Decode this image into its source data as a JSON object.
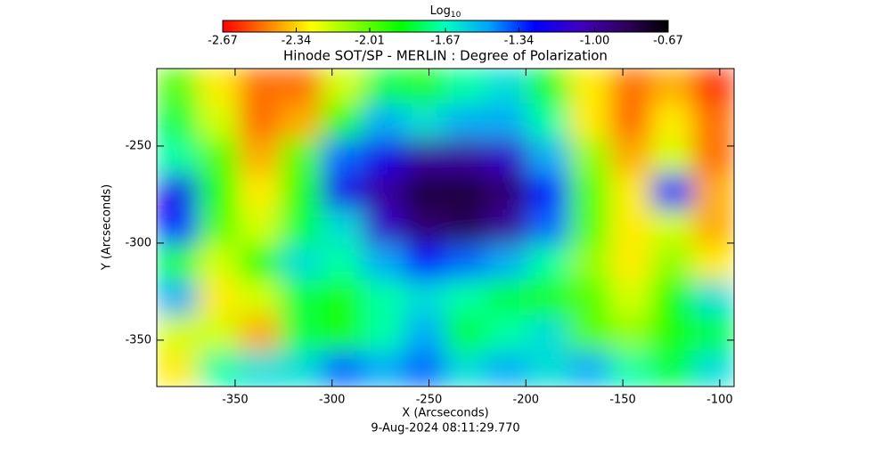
{
  "chart_data": {
    "type": "heatmap",
    "title": "Hinode SOT/SP - MERLIN : Degree of Polarization",
    "xlabel": "X (Arcseconds)",
    "ylabel": "Y (Arcseconds)",
    "date": "9-Aug-2024 08:11:29.770",
    "colorbar_title": "Log",
    "colorbar_title_sub": "10",
    "xlim": [
      -390.4,
      -92.6
    ],
    "ylim": [
      -373.9,
      -210.1
    ],
    "xticks": [
      -350,
      -300,
      -250,
      -200,
      -150,
      -100
    ],
    "yticks": [
      -250,
      -300,
      -350
    ],
    "clim": [
      -2.67,
      -0.67
    ],
    "cticks": [
      -2.67,
      -2.34,
      -2.01,
      -1.67,
      -1.34,
      {
        "value": -1,
        "label": "-1.00"
      },
      -0.67
    ],
    "colormap": [
      "#ff0000",
      "#ff8000",
      "#ffff00",
      "#80ff00",
      "#00ff00",
      "#00ffc0",
      "#00a0ff",
      "#0000ff",
      "#4000c0",
      "#300060",
      "#000000"
    ],
    "z": [
      [
        -2.0,
        -2.3,
        -2.5,
        -2.5,
        -2.2,
        -1.8,
        -1.9,
        -1.7,
        -1.6,
        -1.9,
        -2.3,
        -2.5,
        -2.4,
        -2.6
      ],
      [
        -1.8,
        -2.2,
        -2.5,
        -2.4,
        -1.9,
        -1.5,
        -1.6,
        -1.5,
        -1.5,
        -1.7,
        -2.3,
        -2.5,
        -2.3,
        -2.5
      ],
      [
        -1.7,
        -2.0,
        -2.4,
        -2.0,
        -1.4,
        -1.2,
        -1.0,
        -1.0,
        -1.1,
        -1.5,
        -2.1,
        -2.4,
        -2.2,
        -2.5
      ],
      [
        -1.2,
        -1.9,
        -2.3,
        -1.9,
        -1.2,
        -1.0,
        -0.8,
        -0.8,
        -0.9,
        -1.3,
        -2.0,
        -2.3,
        -1.3,
        -2.4
      ],
      [
        -1.3,
        -2.0,
        -2.2,
        -1.8,
        -1.6,
        -1.1,
        -0.9,
        -0.85,
        -1.0,
        -1.4,
        -2.0,
        -2.3,
        -2.2,
        -2.4
      ],
      [
        -1.8,
        -2.2,
        -1.9,
        -1.6,
        -1.7,
        -1.5,
        -1.3,
        -1.4,
        -1.5,
        -1.7,
        -2.1,
        -2.3,
        -2.1,
        -2.3
      ],
      [
        -1.5,
        -2.3,
        -2.2,
        -1.8,
        -1.9,
        -1.7,
        -1.6,
        -1.7,
        -1.8,
        -1.9,
        -2.0,
        -2.2,
        -1.9,
        -1.6
      ],
      [
        -2.2,
        -2.2,
        -2.4,
        -1.8,
        -1.9,
        -1.7,
        -1.5,
        -1.8,
        -1.7,
        -1.6,
        -2.0,
        -2.1,
        -1.9,
        -1.8
      ],
      [
        -2.3,
        -1.7,
        -1.6,
        -1.6,
        -1.4,
        -1.5,
        -1.4,
        -1.6,
        -1.5,
        -1.6,
        -1.5,
        -1.7,
        -1.8,
        -1.6
      ]
    ]
  }
}
